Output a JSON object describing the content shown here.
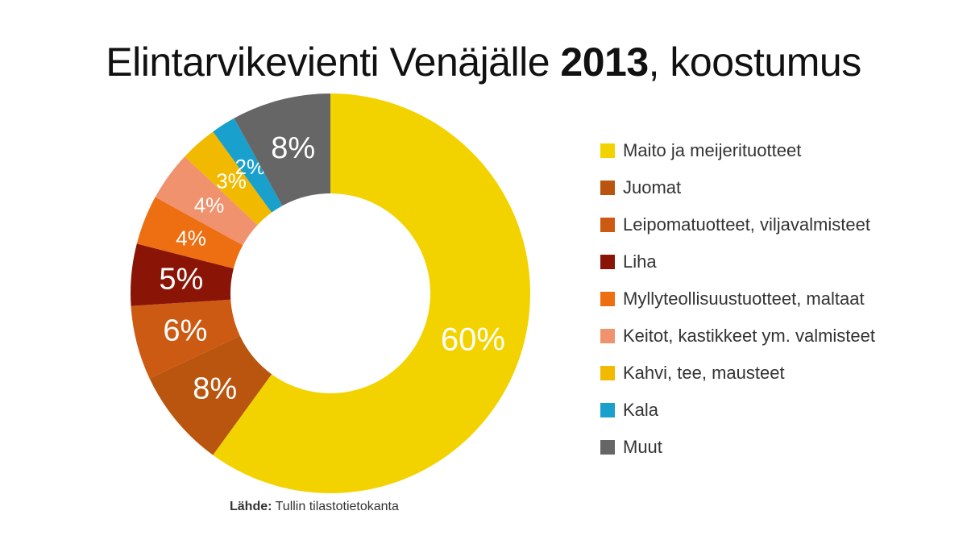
{
  "chart_data": {
    "type": "pie",
    "title": {
      "prefix": "Elintarvikevienti Venäjälle ",
      "year": "2013",
      "suffix": ", koostumus"
    },
    "categories": [
      "Maito ja meijerituotteet",
      "Juomat",
      "Leipomatuotteet, viljavalmisteet",
      "Liha",
      "Myllyteollisuustuotteet, maltaat",
      "Keitot, kastikkeet ym. valmisteet",
      "Kahvi, tee, mausteet",
      "Kala",
      "Muut"
    ],
    "values": [
      60,
      8,
      6,
      5,
      4,
      4,
      3,
      2,
      8
    ],
    "data_labels": [
      "60%",
      "8%",
      "6%",
      "5%",
      "4%",
      "4%",
      "3%",
      "2%",
      "8%"
    ],
    "colors": [
      "#f2d300",
      "#b9550f",
      "#cc5a12",
      "#8a1506",
      "#ee6e12",
      "#f0926e",
      "#f1ba00",
      "#1aa0cc",
      "#666666"
    ],
    "legend_position": "right"
  },
  "source": {
    "label": "Lähde:",
    "text": "Tullin tilastotietokanta"
  }
}
